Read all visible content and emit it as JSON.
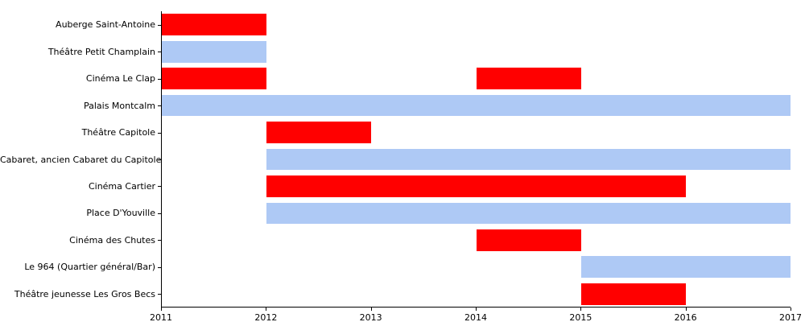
{
  "chart_data": {
    "type": "bar",
    "subtype": "horizontal-gantt",
    "title": "",
    "xlabel": "",
    "ylabel": "",
    "xlim": [
      2011,
      2017
    ],
    "x_ticks": [
      "2011",
      "2012",
      "2013",
      "2014",
      "2015",
      "2016",
      "2017"
    ],
    "grid": false,
    "legend_position": "none",
    "colors": {
      "red": "#ff0000",
      "blue": "#aec9f5",
      "axis": "#000000",
      "background": "#ffffff"
    },
    "rows": [
      {
        "label": "Auberge Saint-Antoine",
        "bars": [
          {
            "start": 2011,
            "end": 2012,
            "color": "red"
          }
        ]
      },
      {
        "label": "Théâtre Petit Champlain",
        "bars": [
          {
            "start": 2011,
            "end": 2012,
            "color": "blue"
          }
        ]
      },
      {
        "label": "Cinéma Le Clap",
        "bars": [
          {
            "start": 2011,
            "end": 2012,
            "color": "red"
          },
          {
            "start": 2014,
            "end": 2015,
            "color": "red"
          }
        ]
      },
      {
        "label": "Palais Montcalm",
        "bars": [
          {
            "start": 2011,
            "end": 2017,
            "color": "blue"
          }
        ]
      },
      {
        "label": "Théâtre Capitole",
        "bars": [
          {
            "start": 2012,
            "end": 2013,
            "color": "red"
          }
        ]
      },
      {
        "label": "Cabaret, ancien Cabaret du Capitole",
        "bars": [
          {
            "start": 2012,
            "end": 2017,
            "color": "blue"
          }
        ]
      },
      {
        "label": "Cinéma Cartier",
        "bars": [
          {
            "start": 2012,
            "end": 2016,
            "color": "red"
          }
        ]
      },
      {
        "label": "Place D'Youville",
        "bars": [
          {
            "start": 2012,
            "end": 2017,
            "color": "blue"
          }
        ]
      },
      {
        "label": "Cinéma des Chutes",
        "bars": [
          {
            "start": 2014,
            "end": 2015,
            "color": "red"
          }
        ]
      },
      {
        "label": "Le 964 (Quartier général/Bar)",
        "bars": [
          {
            "start": 2015,
            "end": 2017,
            "color": "blue"
          }
        ]
      },
      {
        "label": "Théâtre jeunesse Les Gros Becs",
        "bars": [
          {
            "start": 2015,
            "end": 2016,
            "color": "red"
          }
        ]
      }
    ]
  }
}
